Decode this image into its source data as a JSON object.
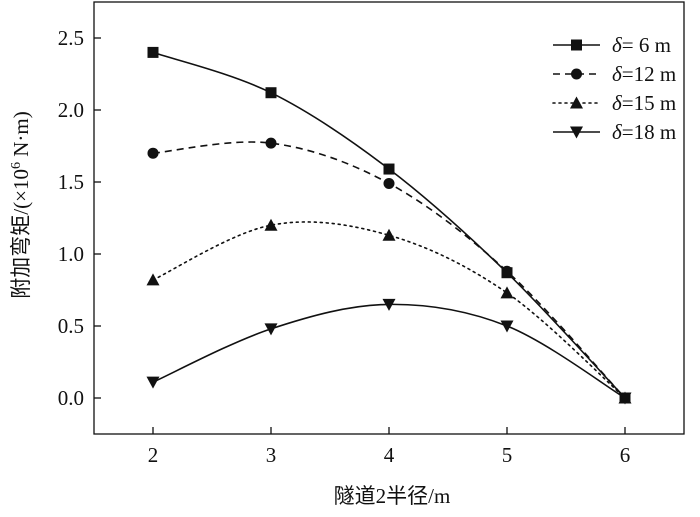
{
  "chart_data": {
    "type": "line",
    "xlabel": "隧道2半径/m",
    "ylabel_main": "附加弯矩/(×10",
    "ylabel_sup": "6",
    "ylabel_end": " N·m)",
    "x": [
      2,
      3,
      4,
      5,
      6
    ],
    "xlim": [
      1.5,
      6.5
    ],
    "ylim": [
      -0.25,
      2.75
    ],
    "xticks": [
      "2",
      "3",
      "4",
      "5",
      "6"
    ],
    "yticks": [
      "0.0",
      "0.5",
      "1.0",
      "1.5",
      "2.0",
      "2.5"
    ],
    "grid": false,
    "legend_position": "top-right",
    "legend_prefix": "δ",
    "series": [
      {
        "name": "δ= 6 m",
        "legend_suffix": "= 6 m",
        "marker": "square",
        "dash": "solid",
        "values": [
          2.4,
          2.12,
          1.59,
          0.87,
          0.0
        ]
      },
      {
        "name": "δ=12 m",
        "legend_suffix": "=12 m",
        "marker": "circle",
        "dash": "dashed",
        "values": [
          1.7,
          1.77,
          1.49,
          0.88,
          0.0
        ]
      },
      {
        "name": "δ=15 m",
        "legend_suffix": "=15 m",
        "marker": "triangle-up",
        "dash": "dotted",
        "values": [
          0.82,
          1.2,
          1.13,
          0.73,
          0.0
        ]
      },
      {
        "name": "δ=18 m",
        "legend_suffix": "=18 m",
        "marker": "triangle-down",
        "dash": "solid",
        "values": [
          0.11,
          0.48,
          0.65,
          0.5,
          0.0
        ]
      }
    ]
  },
  "colors": {
    "line": "#111111",
    "background": "#ffffff"
  }
}
